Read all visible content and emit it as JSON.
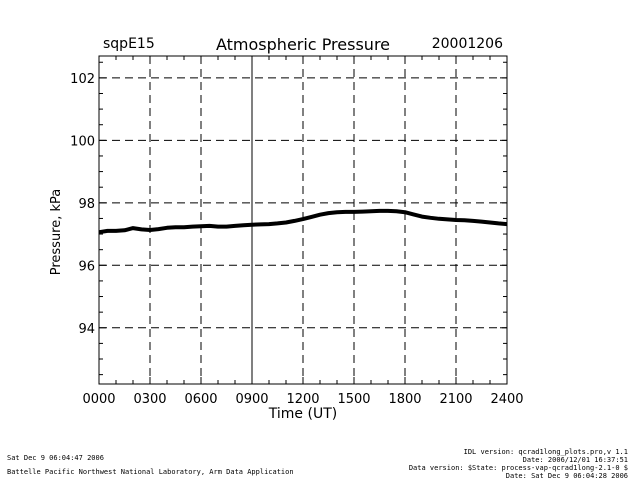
{
  "chart_data": {
    "type": "line",
    "station": "sqpE15",
    "title": "Atmospheric Pressure",
    "date": "20001206",
    "xlabel": "Time (UT)",
    "ylabel": "Pressure, kPa",
    "xlim": [
      0,
      24
    ],
    "ylim": [
      92.2,
      102.7
    ],
    "x_ticks": [
      0,
      3,
      6,
      9,
      12,
      15,
      18,
      21,
      24
    ],
    "x_tick_labels": [
      "0000",
      "0300",
      "0600",
      "0900",
      "1200",
      "1500",
      "1800",
      "2100",
      "2400"
    ],
    "y_ticks": [
      94,
      96,
      98,
      100,
      102
    ],
    "y_tick_labels": [
      "94",
      "96",
      "98",
      "100",
      "102"
    ],
    "grid": true,
    "series": [
      {
        "name": "Pressure",
        "x": [
          0,
          0.5,
          1,
          1.5,
          2,
          2.5,
          3,
          3.5,
          4,
          4.5,
          5,
          5.5,
          6,
          6.5,
          7,
          7.5,
          8,
          8.5,
          9,
          9.5,
          10,
          10.5,
          11,
          11.5,
          12,
          12.5,
          13,
          13.5,
          14,
          14.5,
          15,
          15.5,
          16,
          16.5,
          17,
          17.5,
          18,
          18.5,
          19,
          19.5,
          20,
          20.5,
          21,
          21.5,
          22,
          22.5,
          23,
          23.5,
          24
        ],
        "values": [
          97.06,
          97.1,
          97.1,
          97.12,
          97.19,
          97.15,
          97.13,
          97.16,
          97.2,
          97.22,
          97.22,
          97.24,
          97.25,
          97.26,
          97.24,
          97.24,
          97.26,
          97.28,
          97.3,
          97.31,
          97.32,
          97.34,
          97.37,
          97.42,
          97.48,
          97.55,
          97.62,
          97.67,
          97.7,
          97.71,
          97.71,
          97.72,
          97.73,
          97.74,
          97.74,
          97.73,
          97.7,
          97.63,
          97.56,
          97.52,
          97.49,
          97.47,
          97.45,
          97.44,
          97.42,
          97.4,
          97.37,
          97.34,
          97.32
        ]
      }
    ]
  },
  "footer": {
    "timestamp": "Sat Dec  9 06:04:47 2006",
    "lab": "Battelle Pacific Northwest National Laboratory, Arm Data Application",
    "idl_version": "IDL version: qcrad1long_plots.pro,v 1.1",
    "file_date": "Date: 2006/12/01 16:37:51",
    "data_version": "Data version: $State: process-vap-qcrad1long-2.1-0 $",
    "data_date": "Date: Sat Dec  9 06:04:28 2006"
  }
}
